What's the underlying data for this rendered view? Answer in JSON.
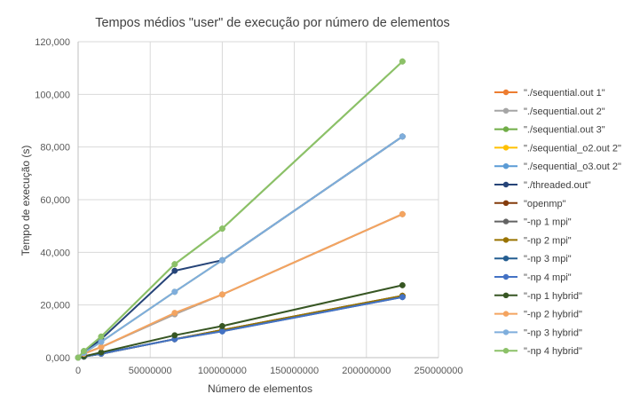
{
  "chart_data": {
    "type": "line",
    "title": "Tempos médios \"user\" de execução por número de elementos",
    "xlabel": "Número de elementos",
    "ylabel": "Tempo de execução (s)",
    "xlim": [
      0,
      250000000
    ],
    "ylim": [
      0,
      120000
    ],
    "x_ticks": [
      "0",
      "50000000",
      "100000000",
      "150000000",
      "200000000",
      "250000000"
    ],
    "y_ticks": [
      "0,000",
      "20,000",
      "40,000",
      "60,000",
      "80,000",
      "100,000",
      "120,000"
    ],
    "grid": "major",
    "legend_position": "right",
    "x": [
      0,
      4000000,
      16000000,
      67000000,
      100000000,
      225000000
    ],
    "series": [
      {
        "name": "\"./sequential.out 1\"",
        "color": "#ED7D31",
        "values": [
          0,
          1500,
          4000,
          16500,
          24000,
          54500
        ]
      },
      {
        "name": "\"./sequential.out 2\"",
        "color": "#A5A5A5",
        "values": [
          0,
          1500,
          4000,
          16500,
          24000,
          54500
        ]
      },
      {
        "name": "\"./sequential.out 3\"",
        "color": "#70AD47",
        "values": [
          0,
          2500,
          8000,
          35500,
          49000,
          112500
        ]
      },
      {
        "name": "\"./sequential_o2.out 2\"",
        "color": "#FFC000",
        "values": [
          0,
          1800,
          6000,
          25000,
          37000,
          84000
        ]
      },
      {
        "name": "\"./sequential_o3.out 2\"",
        "color": "#5B9BD5",
        "values": [
          0,
          1800,
          6000,
          25000,
          37000,
          84000
        ]
      },
      {
        "name": "\"./threaded.out\"",
        "color": "#264478",
        "values": [
          0,
          2000,
          7000,
          33000,
          37000,
          84000
        ]
      },
      {
        "name": "\"openmp\"",
        "color": "#843C0C",
        "values": [
          0,
          400,
          1500,
          7000,
          10500,
          23500
        ]
      },
      {
        "name": "\"-np 1 mpi\"",
        "color": "#636363",
        "values": [
          0,
          400,
          1500,
          7000,
          10500,
          23500
        ]
      },
      {
        "name": "\"-np 2 mpi\"",
        "color": "#997300",
        "values": [
          0,
          400,
          1500,
          7000,
          10500,
          23500
        ]
      },
      {
        "name": "\"-np 3 mpi\"",
        "color": "#255E91",
        "values": [
          0,
          400,
          1500,
          7000,
          10000,
          23000
        ]
      },
      {
        "name": "\"-np 4 mpi\"",
        "color": "#4472C4",
        "values": [
          0,
          400,
          1500,
          7000,
          10000,
          23000
        ]
      },
      {
        "name": "\"-np 1 hybrid\"",
        "color": "#375623",
        "values": [
          0,
          500,
          2000,
          8500,
          12000,
          27500
        ]
      },
      {
        "name": "\"-np 2 hybrid\"",
        "color": "#F4A460",
        "values": [
          0,
          1500,
          4000,
          17000,
          24000,
          54500
        ]
      },
      {
        "name": "\"-np 3 hybrid\"",
        "color": "#7FAEDC",
        "values": [
          0,
          1800,
          6000,
          25000,
          37000,
          84000
        ]
      },
      {
        "name": "\"-np 4 hybrid\"",
        "color": "#8CC168",
        "values": [
          0,
          2500,
          8000,
          35500,
          49000,
          112500
        ]
      }
    ]
  }
}
